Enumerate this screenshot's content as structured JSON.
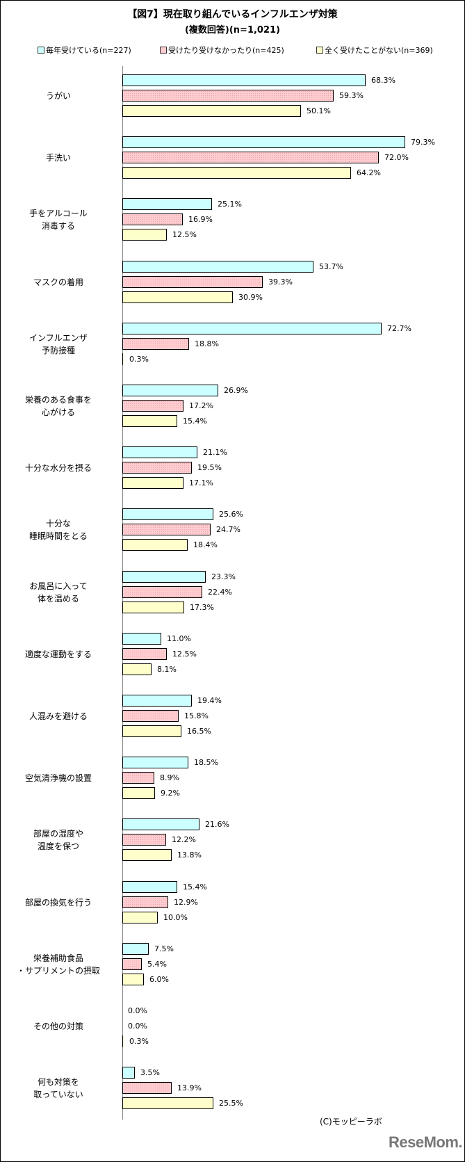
{
  "title": {
    "line1": "【図7】現在取り組んでいるインフルエンザ対策",
    "line2": "(複数回答)(n=1,021)"
  },
  "legend": [
    {
      "label": "毎年受けている(n=227)",
      "color": "#ccffff"
    },
    {
      "label": "受けたり受けなかったり(n=425)",
      "color": "#ffccd0"
    },
    {
      "label": "全く受けたことがない(n=369)",
      "color": "#ffffcc"
    }
  ],
  "credit": "(C)モッピーラボ",
  "logo": "ReseMom.",
  "chart_data": {
    "type": "bar",
    "orientation": "horizontal",
    "title": "【図7】現在取り組んでいるインフルエンザ対策 (複数回答)(n=1,021)",
    "xlabel": "",
    "ylabel": "",
    "grid": false,
    "legend_position": "top",
    "categories": [
      "うがい",
      "手洗い",
      "手をアルコール\n消毒する",
      "マスクの着用",
      "インフルエンザ\n予防接種",
      "栄養のある食事を\n心がける",
      "十分な水分を摂る",
      "十分な\n睡眠時間をとる",
      "お風呂に入って\n体を温める",
      "適度な運動をする",
      "人混みを避ける",
      "空気清浄機の設置",
      "部屋の湿度や\n温度を保つ",
      "部屋の換気を行う",
      "栄養補助食品\n・サプリメントの摂取",
      "その他の対策",
      "何も対策を\n取っていない"
    ],
    "series": [
      {
        "name": "毎年受けている(n=227)",
        "color": "#ccffff",
        "values": [
          68.3,
          79.3,
          25.1,
          53.7,
          72.7,
          26.9,
          21.1,
          25.6,
          23.3,
          11.0,
          19.4,
          18.5,
          21.6,
          15.4,
          7.5,
          0.0,
          3.5
        ]
      },
      {
        "name": "受けたり受けなかったり(n=425)",
        "color": "#ffccd0",
        "values": [
          59.3,
          72.0,
          16.9,
          39.3,
          18.8,
          17.2,
          19.5,
          24.7,
          22.4,
          12.5,
          15.8,
          8.9,
          12.2,
          12.9,
          5.4,
          0.0,
          13.9
        ]
      },
      {
        "name": "全く受けたことがない(n=369)",
        "color": "#ffffcc",
        "values": [
          50.1,
          64.2,
          12.5,
          30.9,
          0.3,
          15.4,
          17.1,
          18.4,
          17.3,
          8.1,
          16.5,
          9.2,
          13.8,
          10.0,
          6.0,
          0.3,
          25.5
        ]
      }
    ],
    "value_labels": [
      [
        "68.3%",
        "59.3%",
        "50.1%"
      ],
      [
        "79.3%",
        "72.0%",
        "64.2%"
      ],
      [
        "25.1%",
        "16.9%",
        "12.5%"
      ],
      [
        "53.7%",
        "39.3%",
        "30.9%"
      ],
      [
        "72.7%",
        "18.8%",
        "0.3%"
      ],
      [
        "26.9%",
        "17.2%",
        "15.4%"
      ],
      [
        "21.1%",
        "19.5%",
        "17.1%"
      ],
      [
        "25.6%",
        "24.7%",
        "18.4%"
      ],
      [
        "23.3%",
        "22.4%",
        "17.3%"
      ],
      [
        "11.0%",
        "12.5%",
        "8.1%"
      ],
      [
        "19.4%",
        "15.8%",
        "16.5%"
      ],
      [
        "18.5%",
        "8.9%",
        "9.2%"
      ],
      [
        "21.6%",
        "12.2%",
        "13.8%"
      ],
      [
        "15.4%",
        "12.9%",
        "10.0%"
      ],
      [
        "7.5%",
        "5.4%",
        "6.0%"
      ],
      [
        "0.0%",
        "0.0%",
        "0.3%"
      ],
      [
        "3.5%",
        "13.9%",
        "25.5%"
      ]
    ],
    "xlim": [
      0,
      90
    ]
  }
}
